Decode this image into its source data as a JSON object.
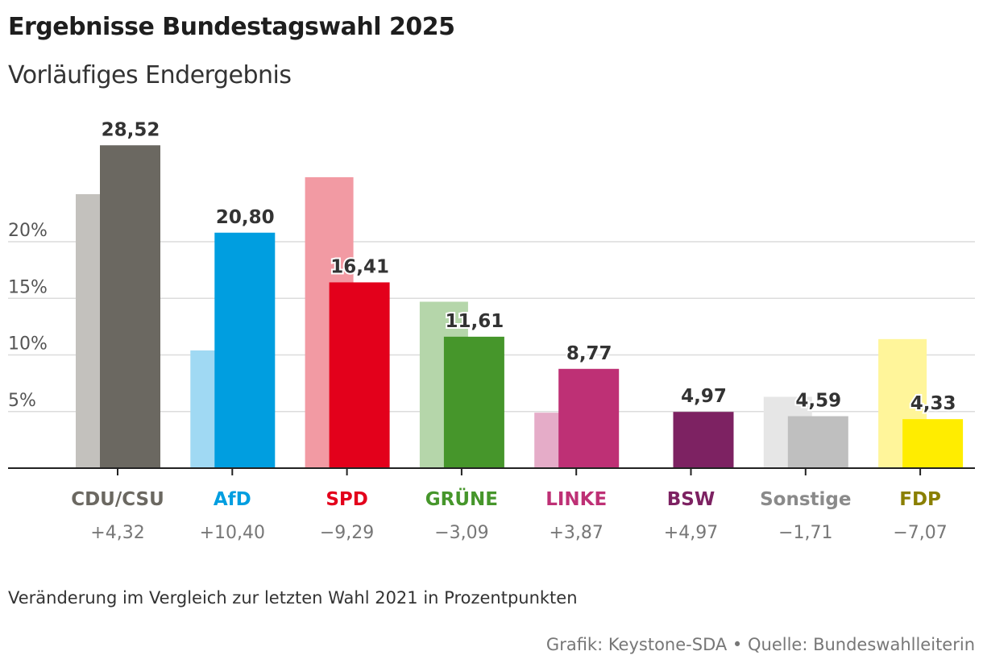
{
  "header": {
    "title": "Ergebnisse Bundestagswahl 2025",
    "subtitle": "Vorläufiges Endergebnis"
  },
  "footer": {
    "note": "Veränderung im Vergleich zur letzten Wahl 2021 in Prozentpunkten",
    "source": "Grafik: Keystone-SDA • Quelle: Bundeswahlleiterin"
  },
  "chart_data": {
    "type": "bar",
    "title": "Ergebnisse Bundestagswahl 2025",
    "subtitle": "Vorläufiges Endergebnis",
    "y_ticks": [
      {
        "value": 5,
        "label": "5%"
      },
      {
        "value": 10,
        "label": "10%"
      },
      {
        "value": 15,
        "label": "15%"
      },
      {
        "value": 20,
        "label": "20%"
      }
    ],
    "ylim": [
      0,
      30
    ],
    "grid": true,
    "categories": [
      "CDU/CSU",
      "AfD",
      "SPD",
      "GRÜNE",
      "LINKE",
      "BSW",
      "Sonstige",
      "FDP"
    ],
    "series": [
      {
        "values": [
          24.2,
          10.4,
          25.7,
          14.7,
          4.9,
          0,
          6.3,
          11.4
        ]
      },
      {
        "values": [
          28.52,
          20.8,
          16.41,
          11.61,
          8.77,
          4.97,
          4.59,
          4.33
        ]
      }
    ],
    "value_labels": [
      "28,52",
      "20,80",
      "16,41",
      "11,61",
      "8,77",
      "4,97",
      "4,59",
      "4,33"
    ],
    "change_labels": [
      "+4,32",
      "+10,40",
      "−9,29",
      "−3,09",
      "+3,87",
      "+4,97",
      "−1,71",
      "−7,07"
    ],
    "colors": {
      "current": [
        "#6b6861",
        "#009ee0",
        "#e3001b",
        "#46962b",
        "#be3075",
        "#7d2262",
        "#bfbfbf",
        "#ffed00"
      ],
      "previous": [
        "#c3c1bd",
        "#a0d9f3",
        "#f29aa3",
        "#b5d6aa",
        "#e5acc8",
        "#cfa7c0",
        "#e6e6e6",
        "#fff59a"
      ],
      "category_label": [
        "#6b6861",
        "#009ee0",
        "#e3001b",
        "#46962b",
        "#be3075",
        "#7d2262",
        "#8a8a8a",
        "#8a7f00"
      ]
    }
  }
}
